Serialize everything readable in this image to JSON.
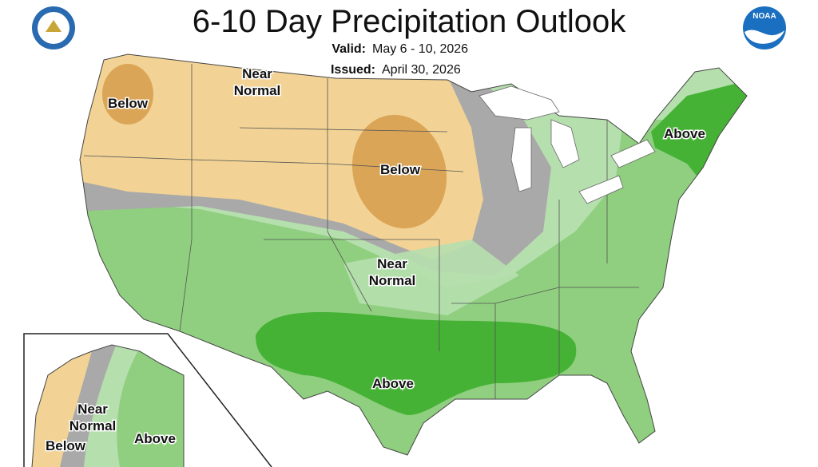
{
  "header": {
    "title": "6-10 Day Precipitation Outlook",
    "valid_label": "Valid:",
    "valid_value": "May 6 - 10, 2026",
    "issued_label": "Issued:",
    "issued_value": "April 30, 2026",
    "noaa_logo_text": "NOAA"
  },
  "map_labels": [
    {
      "lines": [
        "Below"
      ]
    },
    {
      "lines": [
        "Near",
        "Normal"
      ]
    },
    {
      "lines": [
        "Below"
      ]
    },
    {
      "lines": [
        "Above"
      ]
    },
    {
      "lines": [
        "Near",
        "Normal"
      ]
    },
    {
      "lines": [
        "Above"
      ]
    },
    {
      "lines": [
        "Near",
        "Normal"
      ]
    },
    {
      "lines": [
        "Below"
      ]
    },
    {
      "lines": [
        "Above"
      ]
    }
  ]
}
